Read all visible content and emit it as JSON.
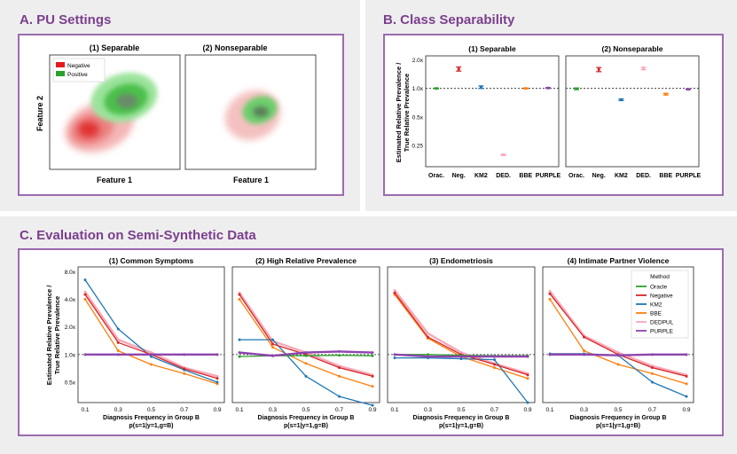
{
  "panels": {
    "a_title": "A. PU Settings",
    "b_title": "B. Class Separability",
    "c_title": "C. Evaluation on Semi-Synthetic Data"
  },
  "colors": {
    "accent": "#7b3f8e",
    "frame": "#9b6bb0",
    "oracle": "#2ca02c",
    "negative": "#d62728",
    "km2": "#1f77b4",
    "bbe": "#ff7f0e",
    "dedpul": "#f7a8b8",
    "purple": "#8e44ad",
    "separable_negative": "#f08080",
    "separable_positive": "#2ca02c"
  },
  "pu_settings": {
    "plots": [
      {
        "title": "(1) Separable",
        "xlabel": "Feature 1"
      },
      {
        "title": "(2) Nonseparable",
        "xlabel": "Feature 1"
      }
    ],
    "ylabel": "Feature 2",
    "legend": [
      {
        "label": "Negative",
        "color": "#e41a1c"
      },
      {
        "label": "Positive",
        "color": "#2ca02c"
      }
    ]
  },
  "chart_data": [
    {
      "type": "scatter",
      "id": "class_separability",
      "ylabel_line1": "Estimated Relative Prevalence /",
      "ylabel_line2": "True Relative Prevalence",
      "yscale": "log",
      "ylim": [
        0.15,
        2.2
      ],
      "yticks": [
        {
          "v": 2.0,
          "label": "2.0x"
        },
        {
          "v": 1.0,
          "label": "1.0x"
        },
        {
          "v": 0.5,
          "label": "0.5x"
        },
        {
          "v": 0.25,
          "label": "0.25"
        }
      ],
      "categories": [
        "Orac.",
        "Neg.",
        "KM2",
        "DED.",
        "BBE",
        "PURPLE"
      ],
      "reference_line": 1.0,
      "subplots": [
        {
          "title": "(1) Separable",
          "points": [
            {
              "method": "Oracle",
              "value": 1.0,
              "err": 0.01
            },
            {
              "method": "Negative",
              "value": 1.6,
              "err": 0.05
            },
            {
              "method": "KM2",
              "value": 1.03,
              "err": 0.03
            },
            {
              "method": "DEDPUL",
              "value": 0.2,
              "err": 0.015
            },
            {
              "method": "BBE",
              "value": 1.0,
              "err": 0.01
            },
            {
              "method": "PURPLE",
              "value": 1.01,
              "err": 0.01
            }
          ]
        },
        {
          "title": "(2) Nonseparable",
          "points": [
            {
              "method": "Oracle",
              "value": 0.99,
              "err": 0.02
            },
            {
              "method": "Negative",
              "value": 1.58,
              "err": 0.05
            },
            {
              "method": "KM2",
              "value": 0.76,
              "err": 0.02
            },
            {
              "method": "DEDPUL",
              "value": 1.62,
              "err": 0.03
            },
            {
              "method": "BBE",
              "value": 0.87,
              "err": 0.02
            },
            {
              "method": "PURPLE",
              "value": 0.98,
              "err": 0.01
            }
          ]
        }
      ]
    },
    {
      "type": "line",
      "id": "semi_synthetic",
      "ylabel_line1": "Estimated Relative Prevalence /",
      "ylabel_line2": "True Relative Prevalence",
      "xlabel_line1": "Diagnosis Frequency in Group B",
      "xlabel_line2": "p(s=1|y=1,g=B)",
      "yscale": "log",
      "ylim": [
        0.3,
        9.0
      ],
      "yticks": [
        {
          "v": 8.0,
          "label": "8.0x"
        },
        {
          "v": 4.0,
          "label": "4.0x"
        },
        {
          "v": 2.0,
          "label": "2.0x"
        },
        {
          "v": 1.0,
          "label": "1.0x"
        },
        {
          "v": 0.5,
          "label": "0.5x"
        }
      ],
      "x": [
        0.1,
        0.3,
        0.5,
        0.7,
        0.9
      ],
      "xtick_labels": [
        "0.1",
        "0.3",
        "0.5",
        "0.7",
        "0.9"
      ],
      "reference_line": 1.0,
      "legend": {
        "title": "Method",
        "entries": [
          "Oracle",
          "Negative",
          "KM2",
          "BBE",
          "DEDPUL",
          "PURPLE"
        ]
      },
      "subplots": [
        {
          "title": "(1) Common Symptoms",
          "series": [
            {
              "name": "Oracle",
              "values": [
                1.0,
                1.0,
                1.0,
                1.0,
                1.0
              ]
            },
            {
              "name": "Negative",
              "values": [
                4.5,
                1.35,
                1.0,
                0.7,
                0.55
              ]
            },
            {
              "name": "KM2",
              "values": [
                6.5,
                1.9,
                0.95,
                0.68,
                0.5
              ]
            },
            {
              "name": "BBE",
              "values": [
                4.0,
                1.1,
                0.78,
                0.62,
                0.48
              ]
            },
            {
              "name": "DEDPUL",
              "values": [
                4.8,
                1.45,
                1.05,
                0.72,
                0.58
              ]
            },
            {
              "name": "PURPLE",
              "values": [
                1.0,
                1.0,
                1.0,
                1.0,
                1.0
              ]
            }
          ]
        },
        {
          "title": "(2) High Relative Prevalence",
          "series": [
            {
              "name": "Oracle",
              "values": [
                0.95,
                0.97,
                0.97,
                0.98,
                0.97
              ]
            },
            {
              "name": "Negative",
              "values": [
                4.5,
                1.3,
                1.0,
                0.72,
                0.58
              ]
            },
            {
              "name": "KM2",
              "values": [
                1.45,
                1.45,
                0.58,
                0.35,
                0.28
              ]
            },
            {
              "name": "BBE",
              "values": [
                4.0,
                1.2,
                0.8,
                0.58,
                0.45
              ]
            },
            {
              "name": "DEDPUL",
              "values": [
                4.7,
                1.4,
                1.05,
                0.75,
                0.6
              ]
            },
            {
              "name": "PURPLE",
              "values": [
                1.05,
                0.97,
                1.05,
                1.08,
                1.05
              ]
            }
          ]
        },
        {
          "title": "(3) Endometriosis",
          "series": [
            {
              "name": "Oracle",
              "values": [
                1.0,
                1.0,
                0.98,
                0.97,
                0.97
              ]
            },
            {
              "name": "Negative",
              "values": [
                4.7,
                1.55,
                1.0,
                0.78,
                0.6
              ]
            },
            {
              "name": "KM2",
              "values": [
                0.92,
                0.92,
                0.9,
                0.88,
                0.3
              ]
            },
            {
              "name": "BBE",
              "values": [
                4.5,
                1.5,
                0.95,
                0.72,
                0.55
              ]
            },
            {
              "name": "DEDPUL",
              "values": [
                5.0,
                1.7,
                1.05,
                0.8,
                0.62
              ]
            },
            {
              "name": "PURPLE",
              "values": [
                1.0,
                0.95,
                0.95,
                0.95,
                0.95
              ]
            }
          ]
        },
        {
          "title": "(4) Intimate Partner Violence",
          "series": [
            {
              "name": "Oracle",
              "values": [
                1.0,
                1.0,
                0.98,
                1.0,
                1.0
              ]
            },
            {
              "name": "Negative",
              "values": [
                4.6,
                1.55,
                1.0,
                0.72,
                0.58
              ]
            },
            {
              "name": "KM2",
              "values": [
                1.02,
                1.02,
                0.98,
                0.5,
                0.35
              ]
            },
            {
              "name": "BBE",
              "values": [
                4.0,
                1.1,
                0.78,
                0.62,
                0.48
              ]
            },
            {
              "name": "DEDPUL",
              "values": [
                4.9,
                1.6,
                1.05,
                0.75,
                0.6
              ]
            },
            {
              "name": "PURPLE",
              "values": [
                1.0,
                1.0,
                0.98,
                1.0,
                1.0
              ]
            }
          ]
        }
      ]
    }
  ]
}
